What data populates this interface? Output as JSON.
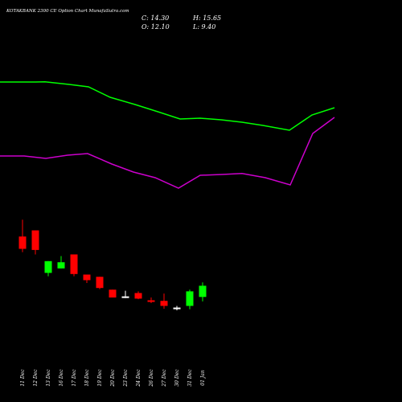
{
  "header": {
    "title": "KOTAKBANK 2300  CE Option  Chart MunafaSutra.com",
    "close": "C: 14.30",
    "open": "O: 12.10",
    "high": "H: 15.65",
    "low": "L: 9.40"
  },
  "chart_data": {
    "type": "candlestick",
    "title": "KOTAKBANK 2300  CE Option  Chart MunafaSutra.com",
    "colors": {
      "background": "#000000",
      "up": "#00ff00",
      "down": "#ff0000",
      "upper_line": "#00ff00",
      "lower_line": "#cc00cc",
      "doji": "#ffffff"
    },
    "price_axis": {
      "min": 7,
      "max": 31,
      "visible": false
    },
    "candles": [
      {
        "date": "11 Dec",
        "open": 25.8,
        "high": 28.8,
        "low": 23.0,
        "close": 23.6
      },
      {
        "date": "12 Dec",
        "open": 26.9,
        "high": 26.9,
        "low": 22.6,
        "close": 23.4
      },
      {
        "date": "13 Dec",
        "open": 19.3,
        "high": 21.4,
        "low": 18.7,
        "close": 21.4
      },
      {
        "date": "16 Dec",
        "open": 20.1,
        "high": 22.3,
        "low": 20.1,
        "close": 21.2
      },
      {
        "date": "17 Dec",
        "open": 22.6,
        "high": 22.6,
        "low": 18.7,
        "close": 19.1
      },
      {
        "date": "18 Dec",
        "open": 19.0,
        "high": 19.0,
        "low": 17.5,
        "close": 18.0
      },
      {
        "date": "19 Dec",
        "open": 18.6,
        "high": 18.6,
        "low": 16.4,
        "close": 16.6
      },
      {
        "date": "20 Dec",
        "open": 16.3,
        "high": 16.3,
        "low": 14.9,
        "close": 14.9
      },
      {
        "date": "23 Dec",
        "open": 15.0,
        "high": 16.1,
        "low": 14.8,
        "close": 15.1
      },
      {
        "date": "24 Dec",
        "open": 15.7,
        "high": 16.0,
        "low": 14.6,
        "close": 14.7
      },
      {
        "date": "26 Dec",
        "open": 14.4,
        "high": 14.9,
        "low": 13.9,
        "close": 14.2
      },
      {
        "date": "27 Dec",
        "open": 14.3,
        "high": 15.6,
        "low": 12.9,
        "close": 13.4
      },
      {
        "date": "30 Dec",
        "open": 13.1,
        "high": 13.4,
        "low": 12.6,
        "close": 13.0
      },
      {
        "date": "31 Dec",
        "open": 13.4,
        "high": 16.3,
        "low": 12.8,
        "close": 16.0
      },
      {
        "date": "01 Jan",
        "open": 15.0,
        "high": 17.6,
        "low": 14.2,
        "close": 17.0
      }
    ],
    "upper_line": {
      "color": "#00ff00",
      "values": [
        [
          0,
          102
        ],
        [
          44,
          102
        ],
        [
          56,
          101.7
        ],
        [
          86,
          105
        ],
        [
          110,
          108
        ],
        [
          137,
          121
        ],
        [
          168,
          130
        ],
        [
          198,
          139.5
        ],
        [
          224,
          148
        ],
        [
          249,
          147
        ],
        [
          275,
          149
        ],
        [
          301,
          152
        ],
        [
          327,
          156
        ],
        [
          360,
          162
        ],
        [
          388,
          143
        ],
        [
          416,
          134
        ]
      ]
    },
    "lower_line": {
      "color": "#cc00cc",
      "values": [
        [
          0,
          194
        ],
        [
          30,
          194
        ],
        [
          57,
          197
        ],
        [
          84,
          193
        ],
        [
          109,
          191
        ],
        [
          139,
          204
        ],
        [
          166,
          214
        ],
        [
          193,
          221
        ],
        [
          222,
          234
        ],
        [
          249,
          218
        ],
        [
          276,
          217
        ],
        [
          301,
          215.7
        ],
        [
          330,
          221
        ],
        [
          361,
          230
        ],
        [
          389,
          166
        ],
        [
          416,
          146
        ]
      ]
    }
  }
}
